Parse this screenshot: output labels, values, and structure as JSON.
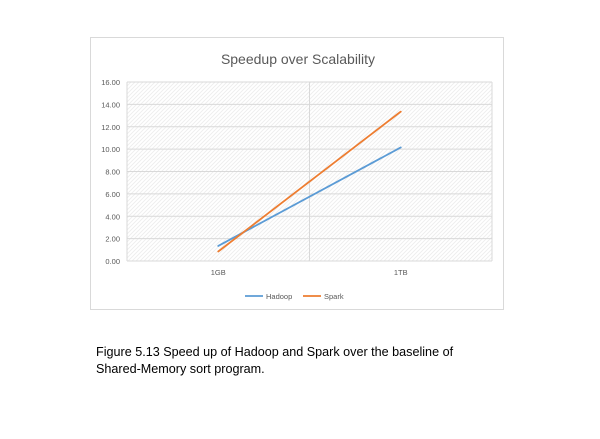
{
  "chart_data": {
    "type": "line",
    "title": "Speedup over Scalability",
    "categories": [
      "1GB",
      "1TB"
    ],
    "series": [
      {
        "name": "Hadoop",
        "color": "#5b9bd5",
        "values": [
          1.35,
          10.15
        ]
      },
      {
        "name": "Spark",
        "color": "#ed7d31",
        "values": [
          0.85,
          13.35
        ]
      }
    ],
    "ylim": [
      0,
      16
    ],
    "yticks": [
      "0.00",
      "2.00",
      "4.00",
      "6.00",
      "8.00",
      "10.00",
      "12.00",
      "14.00",
      "16.00"
    ],
    "grid": true,
    "legend": "bottom",
    "xlabel": "",
    "ylabel": ""
  },
  "caption": {
    "line1": "Figure 5.13 Speed up of Hadoop and Spark over the baseline of",
    "line2": "Shared-Memory sort program."
  }
}
